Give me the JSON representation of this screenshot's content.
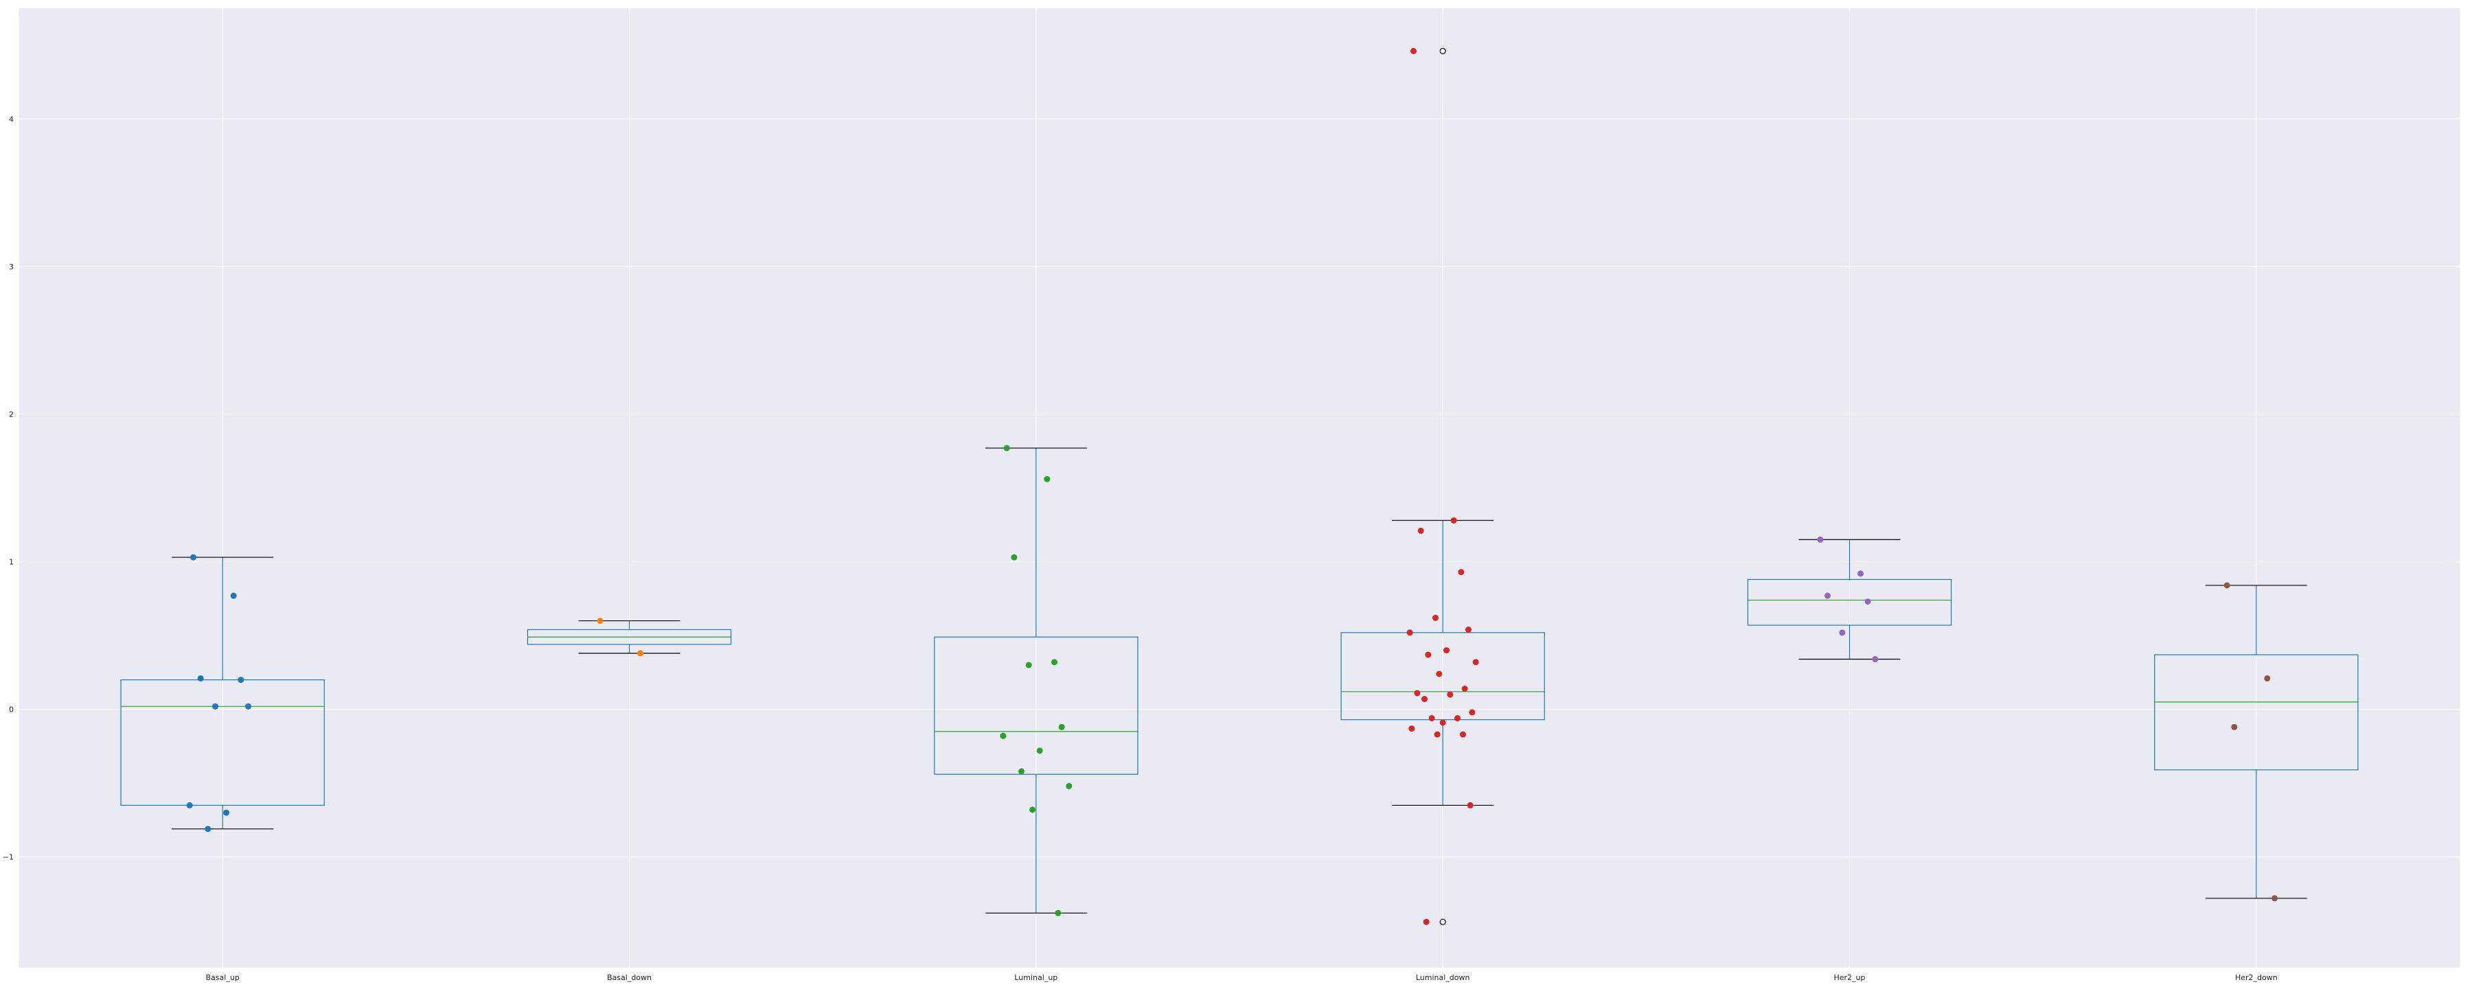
{
  "chart_data": {
    "type": "box",
    "title": "",
    "xlabel": "",
    "ylabel": "",
    "ylim": [
      -1.75,
      4.75
    ],
    "yticks": [
      -1,
      0,
      1,
      2,
      3,
      4
    ],
    "grid": true,
    "categories": [
      "Basal_up",
      "Basal_down",
      "Luminal_up",
      "Luminal_down",
      "Her2_up",
      "Her2_down"
    ],
    "boxes": [
      {
        "category": "Basal_up",
        "whisker_low": -0.81,
        "q1": -0.65,
        "median": 0.02,
        "q3": 0.2,
        "whisker_high": 1.03,
        "outliers": []
      },
      {
        "category": "Basal_down",
        "whisker_low": 0.38,
        "q1": 0.44,
        "median": 0.49,
        "q3": 0.54,
        "whisker_high": 0.6,
        "outliers": []
      },
      {
        "category": "Luminal_up",
        "whisker_low": -1.38,
        "q1": -0.44,
        "median": -0.15,
        "q3": 0.49,
        "whisker_high": 1.77,
        "outliers": []
      },
      {
        "category": "Luminal_down",
        "whisker_low": -0.65,
        "q1": -0.07,
        "median": 0.12,
        "q3": 0.52,
        "whisker_high": 1.28,
        "outliers": [
          4.46,
          -1.44
        ]
      },
      {
        "category": "Her2_up",
        "whisker_low": 0.34,
        "q1": 0.57,
        "median": 0.74,
        "q3": 0.88,
        "whisker_high": 1.15,
        "outliers": []
      },
      {
        "category": "Her2_down",
        "whisker_low": -1.28,
        "q1": -0.41,
        "median": 0.05,
        "q3": 0.37,
        "whisker_high": 0.84,
        "outliers": []
      }
    ],
    "points": [
      {
        "category": "Basal_up",
        "values": [
          1.03,
          0.77,
          0.21,
          0.2,
          0.02,
          0.02,
          -0.65,
          -0.7,
          -0.81
        ],
        "color": "#1f77b4"
      },
      {
        "category": "Basal_down",
        "values": [
          0.6,
          0.38
        ],
        "color": "#ff7f0e"
      },
      {
        "category": "Luminal_up",
        "values": [
          1.77,
          1.56,
          1.03,
          0.32,
          0.3,
          -0.12,
          -0.18,
          -0.28,
          -0.42,
          -0.52,
          -0.68,
          -1.38
        ],
        "color": "#2ca02c"
      },
      {
        "category": "Luminal_down",
        "values": [
          4.46,
          1.28,
          1.21,
          0.93,
          0.62,
          0.54,
          0.52,
          0.4,
          0.37,
          0.32,
          0.24,
          0.14,
          0.11,
          0.1,
          0.07,
          -0.02,
          -0.06,
          -0.06,
          -0.09,
          -0.13,
          -0.17,
          -0.17,
          -0.65,
          -1.44
        ],
        "color": "#d62728"
      },
      {
        "category": "Her2_up",
        "values": [
          1.15,
          0.92,
          0.77,
          0.73,
          0.52,
          0.34
        ],
        "color": "#9467bd"
      },
      {
        "category": "Her2_down",
        "values": [
          0.84,
          0.21,
          -0.12,
          -1.28
        ],
        "color": "#8c564b"
      }
    ],
    "colors": {
      "background": "#eaeaf2",
      "grid": "#ffffff",
      "box": "#1f77b4",
      "median": "#2ca02c",
      "cap": "#000000"
    }
  }
}
